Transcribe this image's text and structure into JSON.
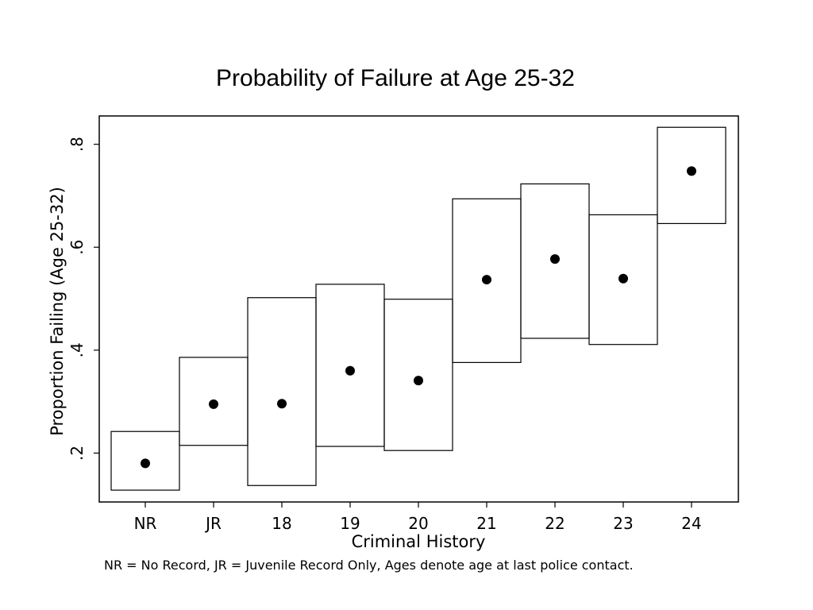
{
  "chart_data": {
    "type": "scatter",
    "title": "Probability of Failure at Age 25-32",
    "xlabel": "Criminal History",
    "ylabel": "Proportion Failing (Age 25-32)",
    "note": "NR = No Record, JR = Juvenile Record Only, Ages denote age at last police contact.",
    "categories": [
      "NR",
      "JR",
      "18",
      "19",
      "20",
      "21",
      "22",
      "23",
      "24"
    ],
    "values": [
      0.18,
      0.295,
      0.296,
      0.36,
      0.341,
      0.537,
      0.577,
      0.539,
      0.748
    ],
    "lower": [
      0.128,
      0.215,
      0.137,
      0.213,
      0.205,
      0.376,
      0.423,
      0.411,
      0.646
    ],
    "upper": [
      0.242,
      0.386,
      0.502,
      0.528,
      0.499,
      0.694,
      0.723,
      0.663,
      0.833
    ],
    "ylim": [
      0.105,
      0.855
    ],
    "yticks": [
      ".2",
      ".4",
      ".6",
      ".8"
    ],
    "ytick_values": [
      0.2,
      0.4,
      0.6,
      0.8
    ],
    "grid": false,
    "interval_style": "box"
  }
}
